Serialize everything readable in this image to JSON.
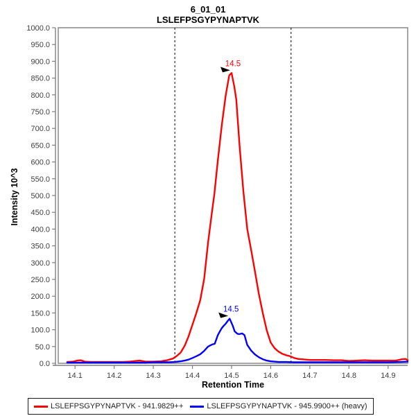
{
  "header": {
    "title": "6_01_01",
    "subtitle": "LSLEFPSGYPYNAPTVK"
  },
  "colors": {
    "frame": "#7f7f7f",
    "tick_text": "#3d3d3d",
    "boundary": "#000000",
    "annotation_arrow": "#000000",
    "light_series": "#ff0000",
    "heavy_series": "#0000ff"
  },
  "chart_data": {
    "type": "line",
    "title": "6_01_01",
    "subtitle": "LSLEFPSGYPYNAPTVK",
    "xlabel": "Retention Time",
    "ylabel": "Intensity 10^3",
    "xlim": [
      14.05,
      14.95
    ],
    "ylim": [
      0,
      1000
    ],
    "x_ticks": [
      14.1,
      14.2,
      14.3,
      14.4,
      14.5,
      14.6,
      14.7,
      14.8,
      14.9
    ],
    "y_ticks": [
      0,
      50,
      100,
      150,
      200,
      250,
      300,
      350,
      400,
      450,
      500,
      550,
      600,
      650,
      700,
      750,
      800,
      850,
      900,
      950,
      1000
    ],
    "grid": false,
    "legend_position": "bottom",
    "integration_boundaries": {
      "style": "dashed",
      "color": "#000000",
      "x_values": [
        14.355,
        14.652
      ]
    },
    "series": [
      {
        "id": "light",
        "name": "LSLEFPSGYPYNAPTVK - 941.9829++",
        "color": "#ff0000",
        "peak_label": "14.5",
        "points": [
          [
            14.08,
            4
          ],
          [
            14.095,
            5
          ],
          [
            14.105,
            8
          ],
          [
            14.115,
            9
          ],
          [
            14.125,
            5
          ],
          [
            14.14,
            4
          ],
          [
            14.16,
            4
          ],
          [
            14.18,
            4
          ],
          [
            14.2,
            4
          ],
          [
            14.22,
            4
          ],
          [
            14.24,
            5
          ],
          [
            14.255,
            7
          ],
          [
            14.265,
            8
          ],
          [
            14.28,
            5
          ],
          [
            14.3,
            5
          ],
          [
            14.32,
            6
          ],
          [
            14.335,
            9
          ],
          [
            14.35,
            14
          ],
          [
            14.36,
            22
          ],
          [
            14.37,
            32
          ],
          [
            14.38,
            52
          ],
          [
            14.39,
            80
          ],
          [
            14.4,
            115
          ],
          [
            14.41,
            150
          ],
          [
            14.42,
            188
          ],
          [
            14.43,
            252
          ],
          [
            14.44,
            360
          ],
          [
            14.45,
            452
          ],
          [
            14.456,
            505
          ],
          [
            14.465,
            605
          ],
          [
            14.475,
            710
          ],
          [
            14.485,
            798
          ],
          [
            14.494,
            858
          ],
          [
            14.5,
            865
          ],
          [
            14.507,
            824
          ],
          [
            14.512,
            786
          ],
          [
            14.52,
            655
          ],
          [
            14.53,
            515
          ],
          [
            14.54,
            400
          ],
          [
            14.55,
            338
          ],
          [
            14.56,
            272
          ],
          [
            14.57,
            205
          ],
          [
            14.58,
            148
          ],
          [
            14.59,
            98
          ],
          [
            14.6,
            62
          ],
          [
            14.61,
            45
          ],
          [
            14.62,
            35
          ],
          [
            14.63,
            28
          ],
          [
            14.64,
            24
          ],
          [
            14.65,
            21
          ],
          [
            14.66,
            16
          ],
          [
            14.67,
            13
          ],
          [
            14.68,
            12
          ],
          [
            14.7,
            10
          ],
          [
            14.72,
            10
          ],
          [
            14.74,
            10
          ],
          [
            14.76,
            9
          ],
          [
            14.78,
            9
          ],
          [
            14.8,
            7
          ],
          [
            14.82,
            8
          ],
          [
            14.84,
            9
          ],
          [
            14.86,
            8
          ],
          [
            14.88,
            8
          ],
          [
            14.9,
            8
          ],
          [
            14.92,
            8
          ],
          [
            14.935,
            12
          ],
          [
            14.945,
            13
          ],
          [
            14.95,
            9
          ]
        ]
      },
      {
        "id": "heavy",
        "name": "LSLEFPSGYPYNAPTVK - 945.9900++ (heavy)",
        "color": "#0000ff",
        "peak_label": "14.5",
        "points": [
          [
            14.08,
            2
          ],
          [
            14.1,
            2
          ],
          [
            14.12,
            2
          ],
          [
            14.14,
            2
          ],
          [
            14.16,
            2
          ],
          [
            14.18,
            2
          ],
          [
            14.2,
            2
          ],
          [
            14.22,
            2
          ],
          [
            14.24,
            2
          ],
          [
            14.26,
            2
          ],
          [
            14.28,
            2
          ],
          [
            14.3,
            3
          ],
          [
            14.32,
            3
          ],
          [
            14.34,
            3
          ],
          [
            14.355,
            4
          ],
          [
            14.37,
            6
          ],
          [
            14.38,
            8
          ],
          [
            14.39,
            11
          ],
          [
            14.4,
            16
          ],
          [
            14.41,
            21
          ],
          [
            14.42,
            27
          ],
          [
            14.43,
            37
          ],
          [
            14.44,
            50
          ],
          [
            14.45,
            56
          ],
          [
            14.457,
            58
          ],
          [
            14.465,
            84
          ],
          [
            14.47,
            95
          ],
          [
            14.475,
            105
          ],
          [
            14.48,
            112
          ],
          [
            14.485,
            118
          ],
          [
            14.49,
            126
          ],
          [
            14.495,
            133
          ],
          [
            14.503,
            112
          ],
          [
            14.508,
            95
          ],
          [
            14.515,
            88
          ],
          [
            14.52,
            87
          ],
          [
            14.527,
            89
          ],
          [
            14.533,
            84
          ],
          [
            14.54,
            55
          ],
          [
            14.55,
            38
          ],
          [
            14.56,
            26
          ],
          [
            14.57,
            18
          ],
          [
            14.58,
            12
          ],
          [
            14.59,
            8
          ],
          [
            14.6,
            6
          ],
          [
            14.62,
            4
          ],
          [
            14.64,
            4
          ],
          [
            14.66,
            3
          ],
          [
            14.68,
            3
          ],
          [
            14.7,
            3
          ],
          [
            14.74,
            3
          ],
          [
            14.78,
            3
          ],
          [
            14.82,
            3
          ],
          [
            14.86,
            3
          ],
          [
            14.9,
            3
          ],
          [
            14.93,
            4
          ],
          [
            14.95,
            5
          ]
        ]
      }
    ]
  }
}
